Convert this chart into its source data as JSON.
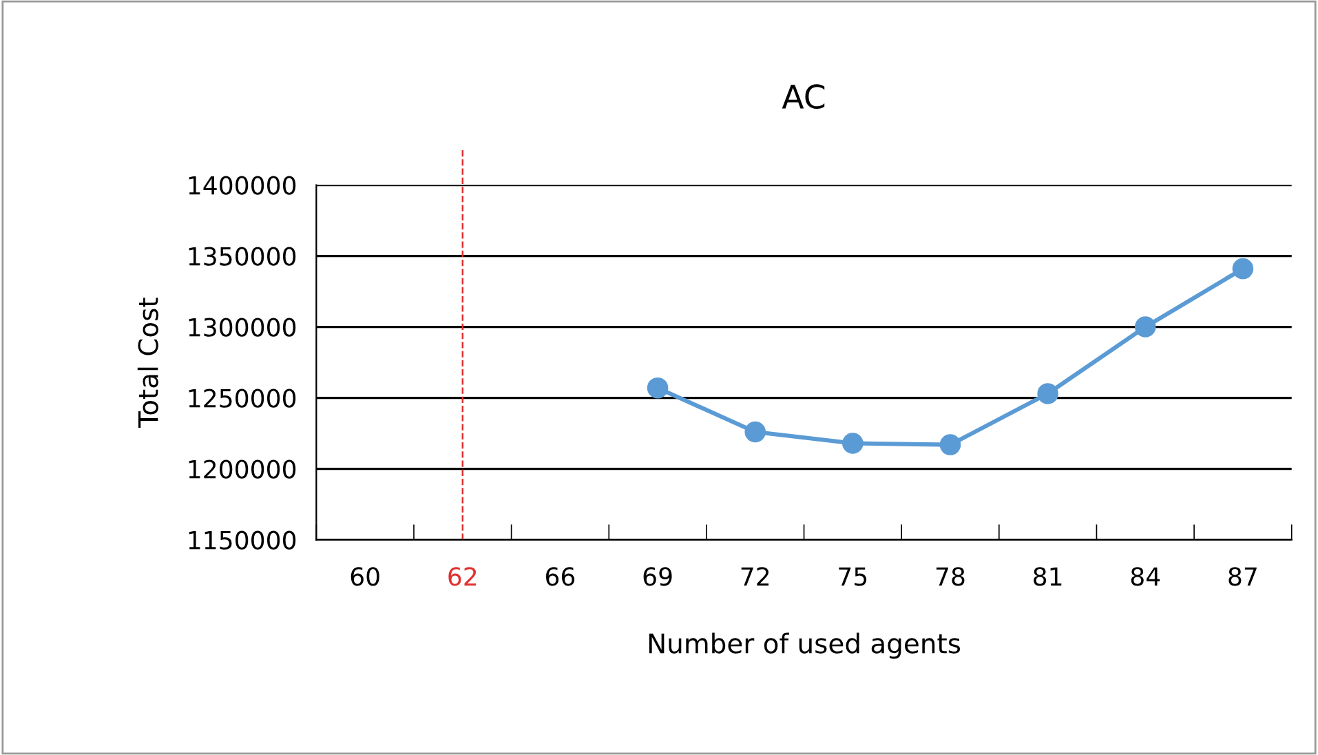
{
  "chart_data": {
    "type": "line",
    "title": "AC",
    "xlabel": "Number of used agents",
    "ylabel": "Total Cost",
    "categories": [
      "60",
      "62",
      "66",
      "69",
      "72",
      "75",
      "78",
      "81",
      "84",
      "87"
    ],
    "series": [
      {
        "color": "#5b9bd5",
        "values": [
          null,
          null,
          null,
          1257000,
          1226000,
          1218000,
          1217000,
          1253000,
          1300000,
          1341000
        ]
      }
    ],
    "ylim": [
      1150000,
      1400000
    ],
    "yticks": [
      1150000,
      1200000,
      1250000,
      1300000,
      1350000,
      1400000
    ],
    "grid": "y",
    "marker": "circle",
    "line_style": "solid",
    "ref_lines": [
      {
        "axis": "x",
        "value": "62",
        "color": "#e03030",
        "line_style": "dashed"
      }
    ]
  }
}
